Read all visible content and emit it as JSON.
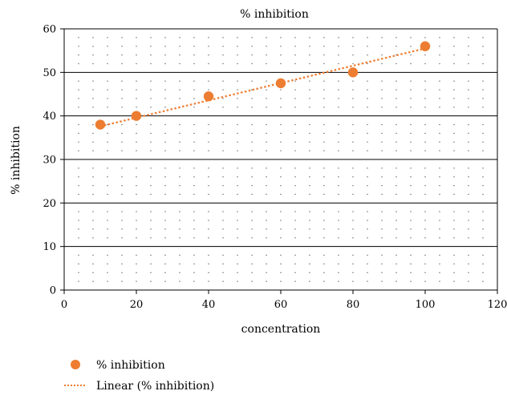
{
  "chart_data": {
    "type": "scatter",
    "title": "% inhibition",
    "xlabel": "concentration",
    "ylabel": "% inhibition",
    "xlim": [
      0,
      120
    ],
    "ylim": [
      0,
      60
    ],
    "xticks": [
      0,
      20,
      40,
      60,
      80,
      100,
      120
    ],
    "yticks": [
      0,
      10,
      20,
      30,
      40,
      50,
      60
    ],
    "grid": {
      "major_horizontal": true,
      "minor_dotted": true
    },
    "legend_position": "bottom-left",
    "series": [
      {
        "name": "% inhibition",
        "kind": "scatter",
        "color": "#ED7D31",
        "x": [
          10,
          20,
          40,
          60,
          80,
          100
        ],
        "y": [
          38,
          40,
          44.5,
          47.5,
          50,
          56
        ]
      },
      {
        "name": "Linear (% inhibition)",
        "kind": "trendline",
        "color": "#ED7D31",
        "line_style": "dotted",
        "x": [
          10,
          100
        ],
        "y": [
          37.6,
          55.5
        ]
      }
    ]
  }
}
